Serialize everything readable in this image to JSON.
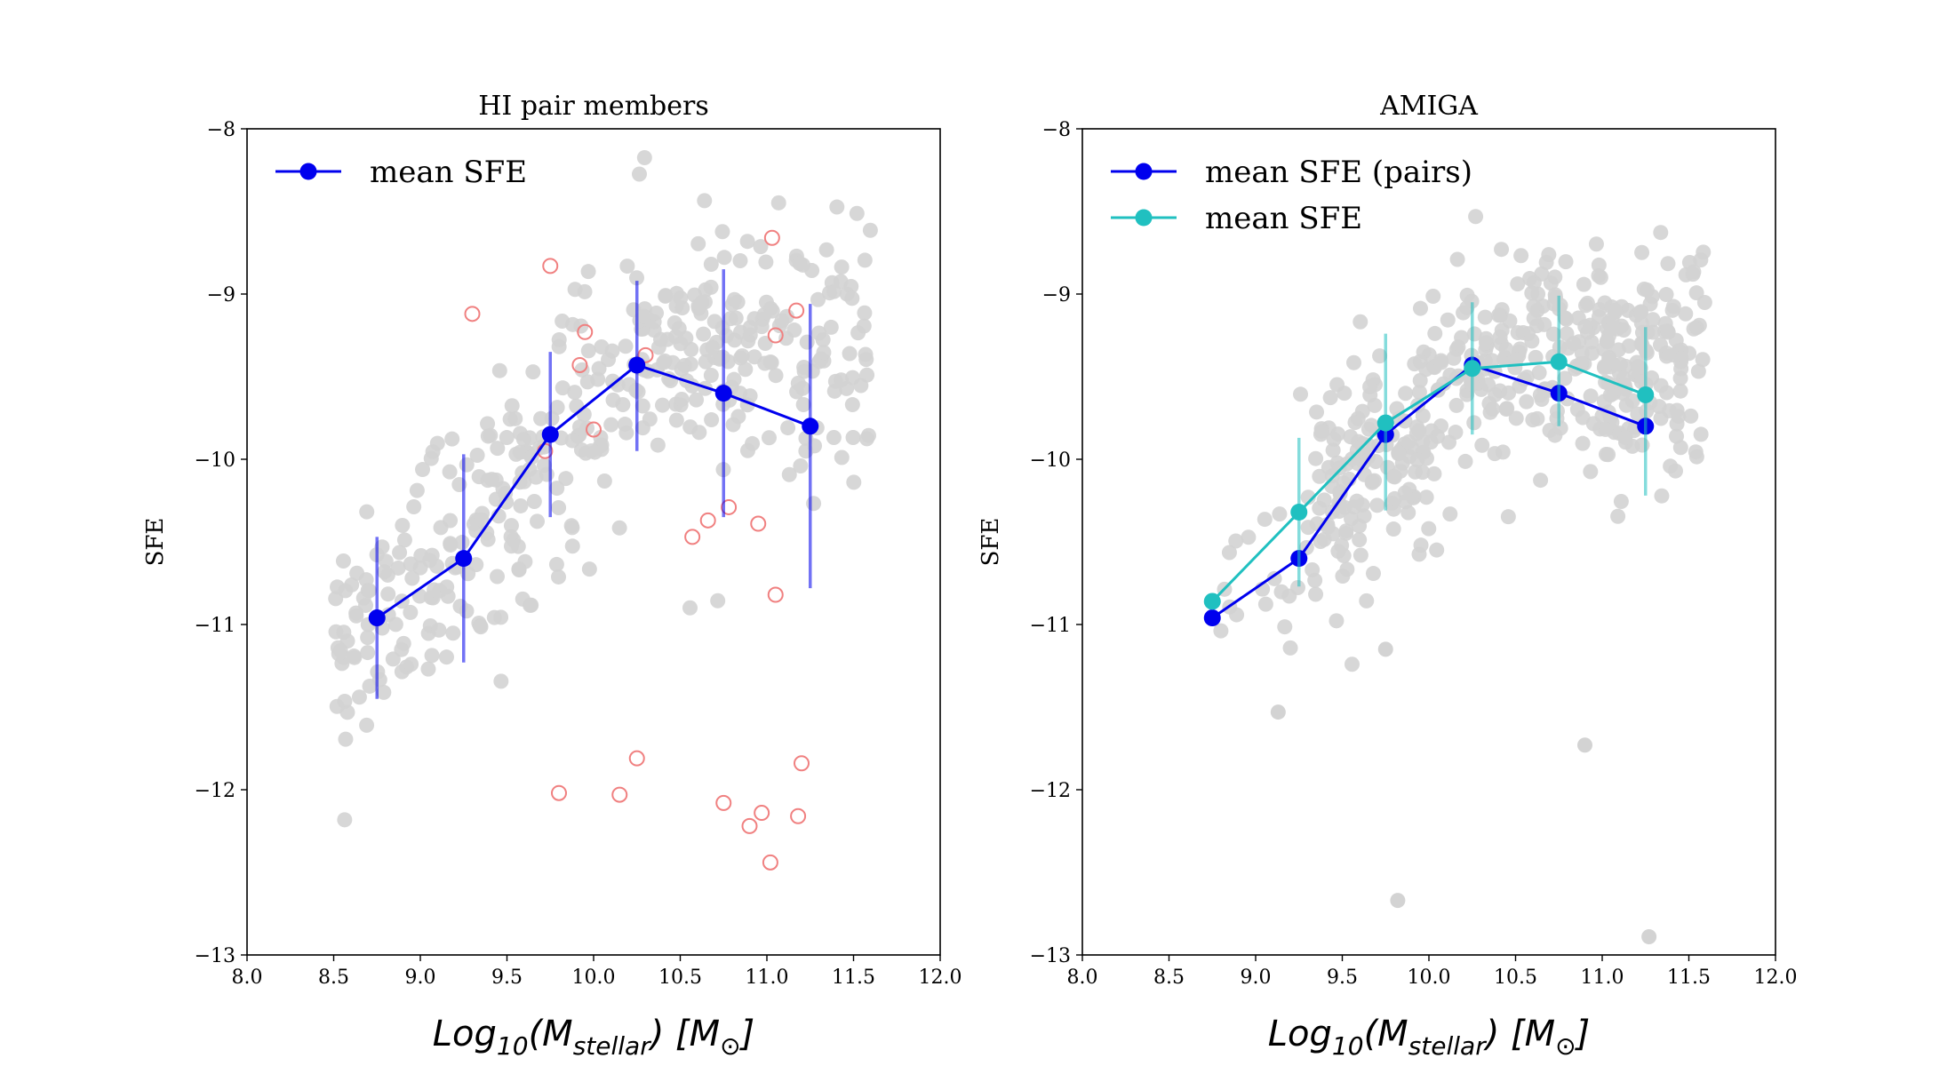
{
  "chart_data": [
    {
      "type": "scatter",
      "title": "HI pair members",
      "xlabel": "Log₁₀(M_stellar) [M_⊙]",
      "xlabel_parts": {
        "pre": "Log",
        "sub1": "10",
        "mid": "(M",
        "sub2": "stellar",
        "post": ") [M",
        "sub3": "⊙",
        "end": "]"
      },
      "ylabel": "SFE",
      "xlim": [
        8.0,
        12.0
      ],
      "ylim": [
        -13,
        -8
      ],
      "xticks": [
        "8.0",
        "8.5",
        "9.0",
        "9.5",
        "10.0",
        "10.5",
        "11.0",
        "11.5",
        "12.0"
      ],
      "yticks": [
        "−8",
        "−9",
        "−10",
        "−11",
        "−12",
        "−13"
      ],
      "legend": [
        {
          "label": "mean SFE",
          "color": "#0000ee"
        }
      ],
      "series": [
        {
          "name": "mean SFE",
          "color": "#0000ee",
          "x": [
            8.75,
            9.25,
            9.75,
            10.25,
            10.75,
            11.25
          ],
          "y": [
            -10.96,
            -10.6,
            -9.85,
            -9.43,
            -9.6,
            -9.8
          ],
          "err_low": [
            -11.45,
            -11.23,
            -10.35,
            -9.95,
            -10.35,
            -10.78
          ],
          "err_high": [
            -10.47,
            -9.97,
            -9.35,
            -8.92,
            -8.85,
            -9.06
          ]
        }
      ],
      "outliers": {
        "color": "#f08080",
        "x": [
          9.8,
          10.15,
          10.25,
          10.75,
          10.9,
          10.97,
          11.02,
          11.18,
          11.2,
          9.95,
          10.0,
          9.75,
          10.3,
          10.57,
          10.66,
          10.78,
          10.95,
          11.05,
          11.05,
          9.3,
          9.72,
          11.03,
          11.17,
          9.92
        ],
        "y": [
          -12.02,
          -12.03,
          -11.81,
          -12.08,
          -12.22,
          -12.14,
          -12.44,
          -12.16,
          -11.84,
          -9.23,
          -9.82,
          -8.83,
          -9.37,
          -10.47,
          -10.37,
          -10.29,
          -10.39,
          -10.82,
          -9.25,
          -9.12,
          -9.95,
          -8.66,
          -9.1,
          -9.43
        ]
      },
      "background_color": "#d3d3d3"
    },
    {
      "type": "scatter",
      "title": "AMIGA",
      "xlabel": "Log₁₀(M_stellar) [M_⊙]",
      "xlabel_parts": {
        "pre": "Log",
        "sub1": "10",
        "mid": "(M",
        "sub2": "stellar",
        "post": ") [M",
        "sub3": "⊙",
        "end": "]"
      },
      "ylabel": "SFE",
      "xlim": [
        8.0,
        12.0
      ],
      "ylim": [
        -13,
        -8
      ],
      "xticks": [
        "8.0",
        "8.5",
        "9.0",
        "9.5",
        "10.0",
        "10.5",
        "11.0",
        "11.5",
        "12.0"
      ],
      "yticks": [
        "−8",
        "−9",
        "−10",
        "−11",
        "−12",
        "−13"
      ],
      "legend": [
        {
          "label": "mean SFE (pairs)",
          "color": "#0000ee"
        },
        {
          "label": "mean SFE",
          "color": "#20c0c0"
        }
      ],
      "series": [
        {
          "name": "mean SFE (pairs)",
          "color": "#0000ee",
          "x": [
            8.75,
            9.25,
            9.75,
            10.25,
            10.75,
            11.25
          ],
          "y": [
            -10.96,
            -10.6,
            -9.85,
            -9.43,
            -9.6,
            -9.8
          ]
        },
        {
          "name": "mean SFE",
          "color": "#20c0c0",
          "x": [
            8.75,
            9.25,
            9.75,
            10.25,
            10.75,
            11.25
          ],
          "y": [
            -10.86,
            -10.32,
            -9.78,
            -9.45,
            -9.41,
            -9.61
          ],
          "err_low": [
            -10.9,
            -10.77,
            -10.31,
            -9.85,
            -9.8,
            -10.22
          ],
          "err_high": [
            -10.82,
            -9.87,
            -9.24,
            -9.05,
            -9.01,
            -9.2
          ]
        }
      ],
      "outliers": {
        "color": "#d3d3d3",
        "x": [
          9.82,
          11.27,
          9.13,
          9.75,
          10.9
        ],
        "y": [
          -12.67,
          -12.89,
          -11.53,
          -11.15,
          -11.73
        ]
      },
      "background_color": "#d3d3d3"
    }
  ]
}
